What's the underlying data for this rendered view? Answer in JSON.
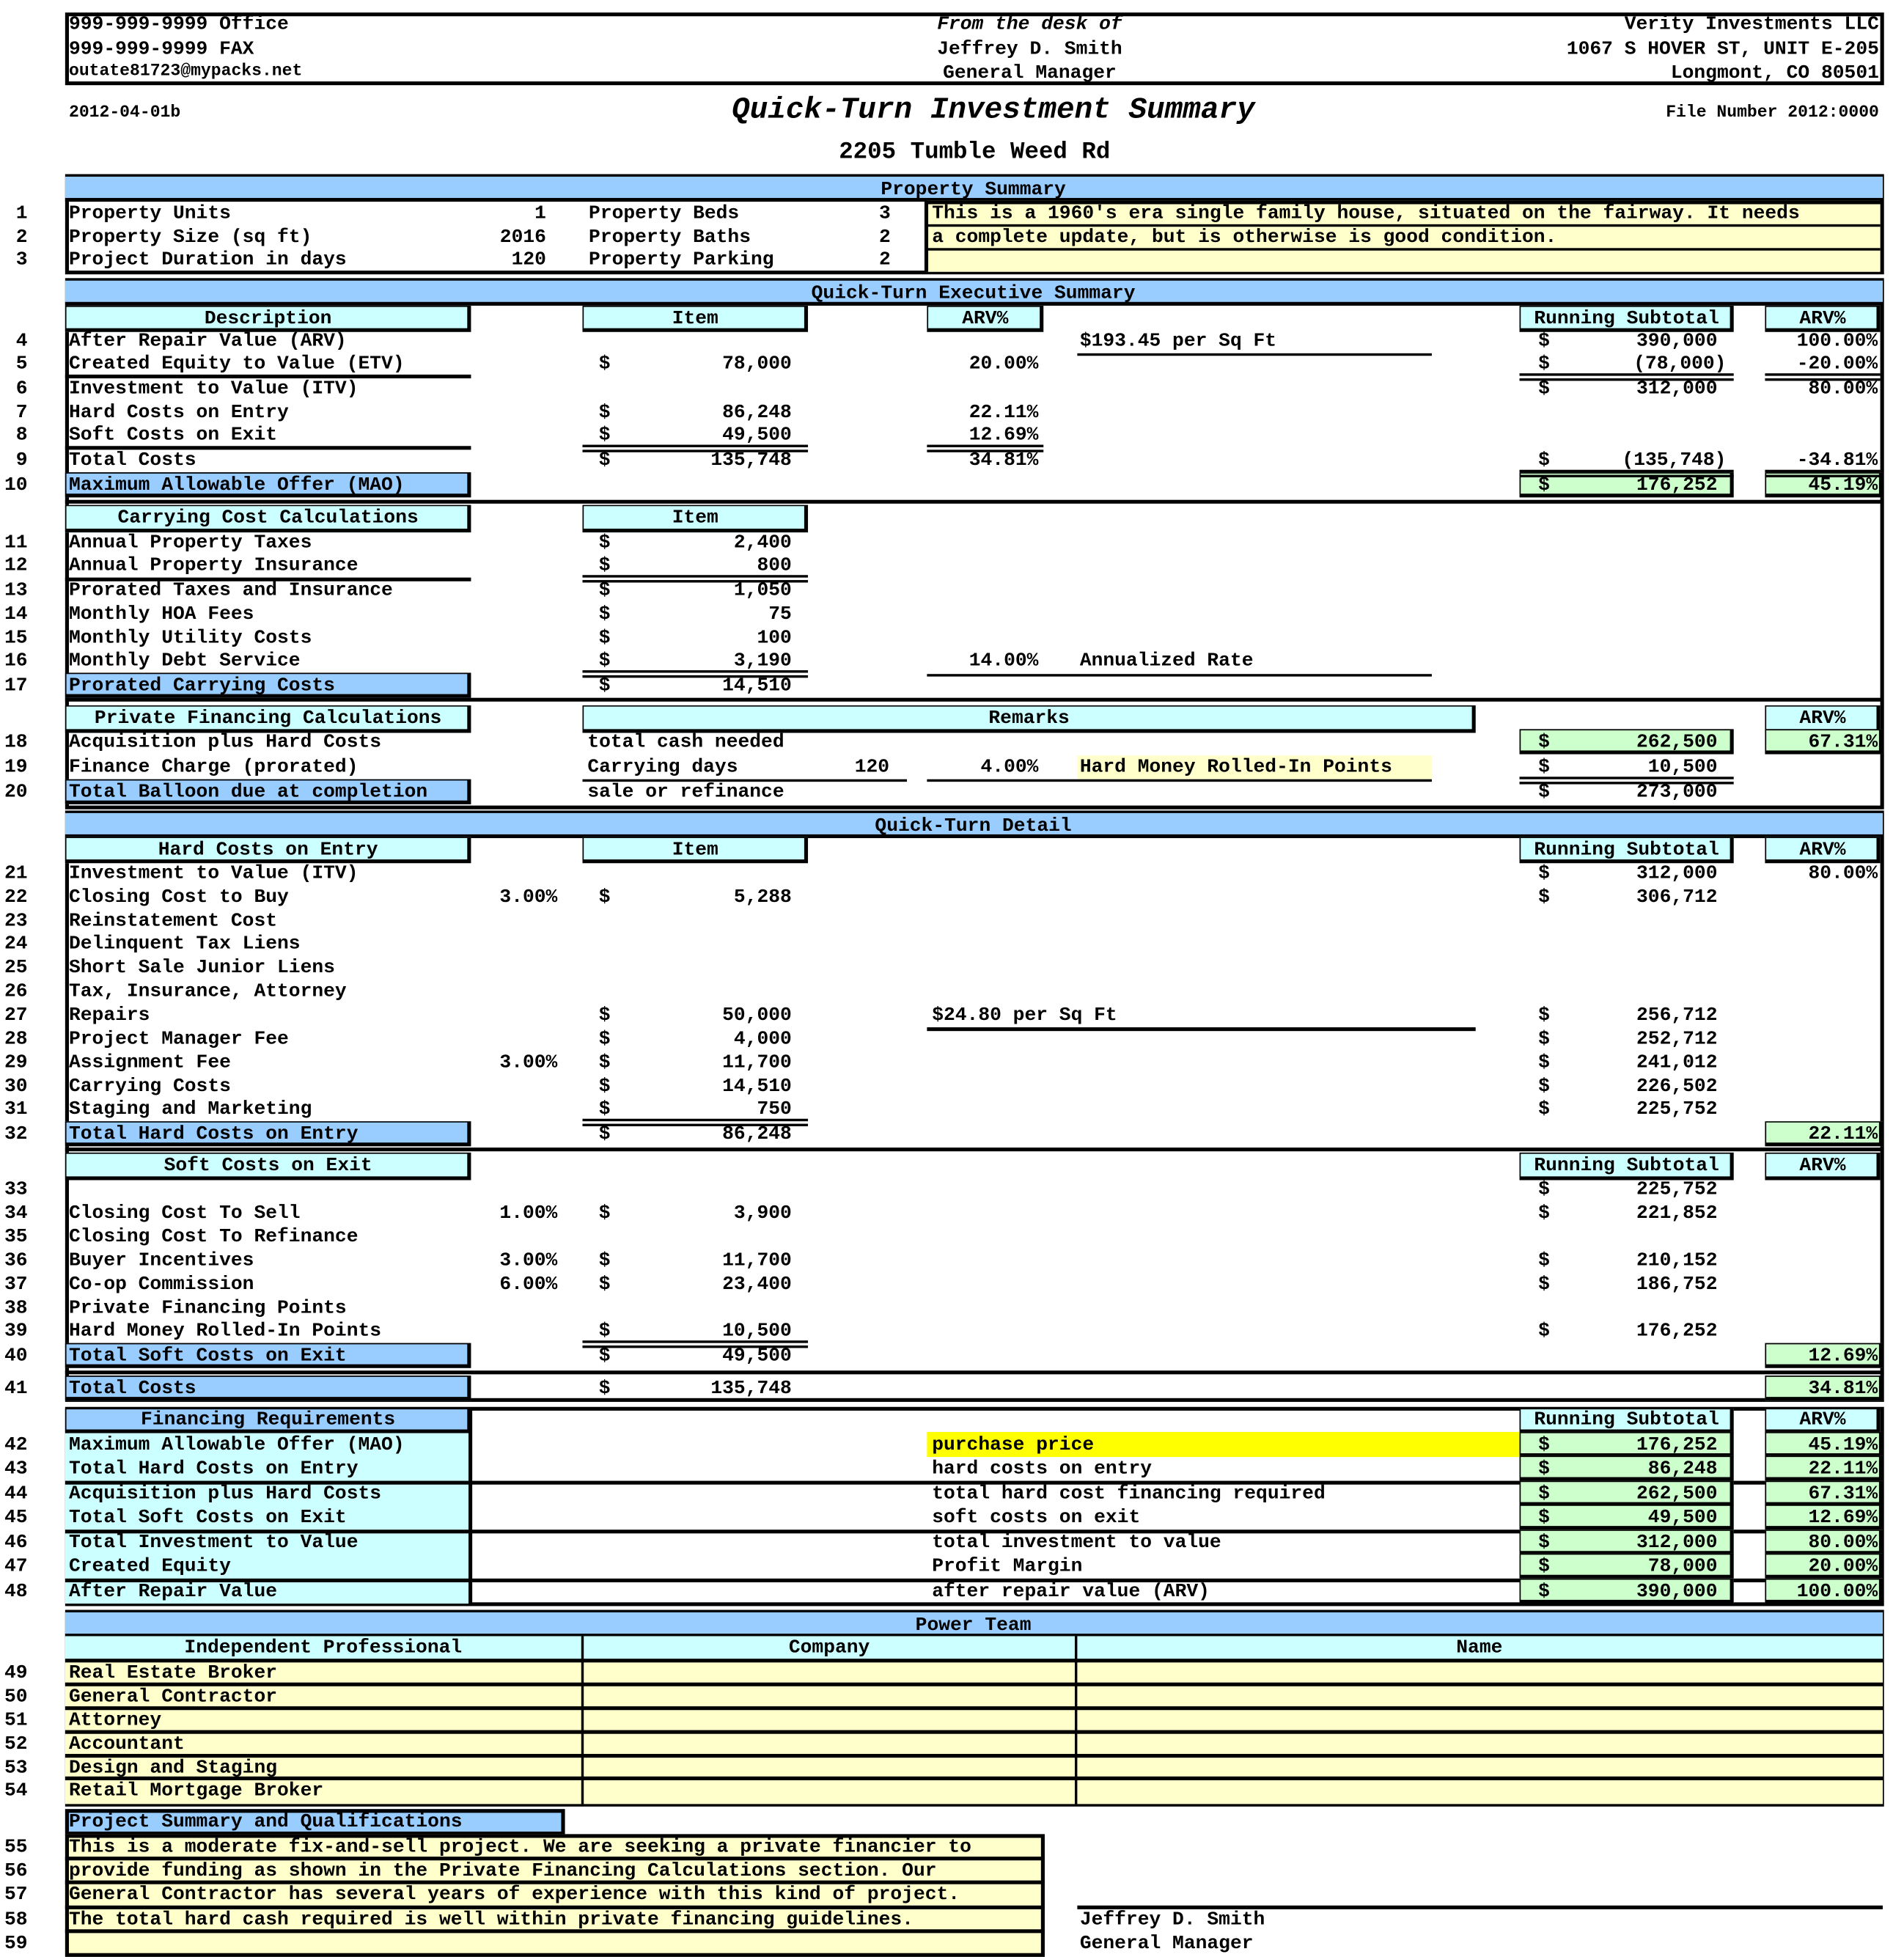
{
  "header": {
    "office": "999-999-9999 Office",
    "fax": "999-999-9999 FAX",
    "email": "outate81723@mypacks.net",
    "from_desk": "From the desk of",
    "name": "Jeffrey D. Smith",
    "role": "General Manager",
    "company": "Verity Investments LLC",
    "street": "1067 S HOVER ST, UNIT E-205",
    "city": "Longmont, CO 80501",
    "version": "2012-04-01b",
    "doc_title": "Quick-Turn Investment Summary",
    "file_number": "File Number 2012:0000",
    "property_address": "2205 Tumble Weed Rd"
  },
  "currency": "$",
  "property_summary": {
    "title": "Property Summary",
    "rows": [
      {
        "n": "1",
        "label": "Property Units",
        "value": "1",
        "label2": "Property Beds",
        "value2": "3"
      },
      {
        "n": "2",
        "label": "Property Size (sq ft)",
        "value": "2016",
        "label2": "Property Baths",
        "value2": "2"
      },
      {
        "n": "3",
        "label": "Project Duration in days",
        "value": "120",
        "label2": "Property Parking",
        "value2": "2"
      }
    ],
    "description": [
      "This is a 1960's era single family house, situated on the fairway. It needs",
      "a complete update, but is otherwise is good condition.",
      ""
    ]
  },
  "exec": {
    "title": "Quick-Turn Executive Summary",
    "col_description": "Description",
    "col_item": "Item",
    "col_arv": "ARV%",
    "col_running": "Running Subtotal",
    "col_arv2": "ARV%"
  },
  "carrying": {
    "title": "Carrying Cost Calculations",
    "col_item": "Item"
  },
  "private_financing": {
    "title": "Private Financing Calculations",
    "col_remarks": "Remarks",
    "col_arv2": "ARV%"
  },
  "detail": {
    "title": "Quick-Turn Detail",
    "hard_title": "Hard Costs on Entry",
    "col_item": "Item",
    "col_running": "Running Subtotal",
    "col_arv2": "ARV%",
    "soft_title": "Soft Costs on Exit",
    "soft_col_running": "Running Subtotal",
    "soft_col_arv2": "ARV%"
  },
  "financing": {
    "title": "Financing Requirements",
    "col_running": "Running Subtotal",
    "col_arv2": "ARV%"
  },
  "rows": [
    {
      "n": "4",
      "label": "After Repair Value (ARV)",
      "note": "$193.45 per Sq Ft",
      "run": "390,000",
      "arv2": "100.00%"
    },
    {
      "n": "5",
      "label": "Created Equity to Value (ETV)",
      "item": "78,000",
      "arv": "20.00%",
      "run": "(78,000)",
      "arv2": "-20.00%"
    },
    {
      "n": "6",
      "label": "Investment to Value (ITV)",
      "run": "312,000",
      "arv2": "80.00%"
    },
    {
      "n": "7",
      "label": "Hard Costs on Entry",
      "item": "86,248",
      "arv": "22.11%"
    },
    {
      "n": "8",
      "label": "Soft Costs on Exit",
      "item": "49,500",
      "arv": "12.69%"
    },
    {
      "n": "9",
      "label": "Total Costs",
      "item": "135,748",
      "arv": "34.81%",
      "run": "(135,748)",
      "arv2": "-34.81%"
    },
    {
      "n": "10",
      "label": "Maximum Allowable Offer (MAO)",
      "run": "176,252",
      "arv2": "45.19%"
    },
    {
      "n": "11",
      "label": "Annual Property Taxes",
      "item": "2,400"
    },
    {
      "n": "12",
      "label": "Annual Property Insurance",
      "item": "800"
    },
    {
      "n": "13",
      "label": "Prorated Taxes and Insurance",
      "item": "1,050"
    },
    {
      "n": "14",
      "label": "Monthly HOA Fees",
      "item": "75"
    },
    {
      "n": "15",
      "label": "Monthly Utility Costs",
      "item": "100"
    },
    {
      "n": "16",
      "label": "Monthly Debt Service",
      "item": "3,190",
      "arv": "14.00%",
      "note": "Annualized Rate"
    },
    {
      "n": "17",
      "label": "Prorated Carrying Costs",
      "item": "14,510"
    },
    {
      "n": "18",
      "label": "Acquisition plus Hard Costs",
      "remark": "total cash needed",
      "run": "262,500",
      "arv2": "67.31%"
    },
    {
      "n": "19",
      "label": "Finance Charge (prorated)",
      "remark": "Carrying days",
      "remark_val": "120",
      "arv": "4.00%",
      "note": "Hard Money Rolled-In Points",
      "run": "10,500"
    },
    {
      "n": "20",
      "label": "Total Balloon due at completion",
      "remark": "sale or refinance",
      "run": "273,000"
    },
    {
      "n": "21",
      "label": "Investment to Value (ITV)",
      "run": "312,000",
      "arv2": "80.00%"
    },
    {
      "n": "22",
      "label": "Closing Cost to Buy",
      "pct": "3.00%",
      "item": "5,288",
      "run": "306,712"
    },
    {
      "n": "23",
      "label": "Reinstatement Cost"
    },
    {
      "n": "24",
      "label": "Delinquent Tax Liens"
    },
    {
      "n": "25",
      "label": "Short Sale Junior Liens"
    },
    {
      "n": "26",
      "label": "Tax, Insurance, Attorney"
    },
    {
      "n": "27",
      "label": "Repairs",
      "item": "50,000",
      "note": "$24.80 per Sq Ft",
      "run": "256,712"
    },
    {
      "n": "28",
      "label": "Project Manager Fee",
      "item": "4,000",
      "run": "252,712"
    },
    {
      "n": "29",
      "label": "Assignment Fee",
      "pct": "3.00%",
      "item": "11,700",
      "run": "241,012"
    },
    {
      "n": "30",
      "label": "Carrying Costs",
      "item": "14,510",
      "run": "226,502"
    },
    {
      "n": "31",
      "label": "Staging and Marketing",
      "item": "750",
      "run": "225,752"
    },
    {
      "n": "32",
      "label": "Total Hard Costs on Entry",
      "item": "86,248",
      "arv2": "22.11%"
    },
    {
      "n": "33",
      "label": "",
      "run": "225,752"
    },
    {
      "n": "34",
      "label": "Closing Cost To Sell",
      "pct": "1.00%",
      "item": "3,900",
      "run": "221,852"
    },
    {
      "n": "35",
      "label": "Closing Cost To Refinance"
    },
    {
      "n": "36",
      "label": "Buyer Incentives",
      "pct": "3.00%",
      "item": "11,700",
      "run": "210,152"
    },
    {
      "n": "37",
      "label": "Co-op Commission",
      "pct": "6.00%",
      "item": "23,400",
      "run": "186,752"
    },
    {
      "n": "38",
      "label": "Private Financing Points"
    },
    {
      "n": "39",
      "label": "Hard Money Rolled-In Points",
      "item": "10,500",
      "run": "176,252"
    },
    {
      "n": "40",
      "label": "Total Soft Costs on Exit",
      "item": "49,500",
      "arv2": "12.69%"
    },
    {
      "n": "41",
      "label": "Total Costs",
      "item": "135,748",
      "arv2": "34.81%"
    },
    {
      "n": "42",
      "label": "Maximum Allowable Offer (MAO)",
      "note": "purchase price",
      "run": "176,252",
      "arv2": "45.19%"
    },
    {
      "n": "43",
      "label": "Total Hard Costs on Entry",
      "note": "hard costs on entry",
      "run": "86,248",
      "arv2": "22.11%"
    },
    {
      "n": "44",
      "label": "Acquisition plus Hard Costs",
      "note": "total hard cost financing required",
      "run": "262,500",
      "arv2": "67.31%"
    },
    {
      "n": "45",
      "label": "Total Soft Costs on Exit",
      "note": "soft costs on exit",
      "run": "49,500",
      "arv2": "12.69%"
    },
    {
      "n": "46",
      "label": "Total Investment to Value",
      "note": "total investment to value",
      "run": "312,000",
      "arv2": "80.00%"
    },
    {
      "n": "47",
      "label": "Created Equity",
      "note": "Profit Margin",
      "run": "78,000",
      "arv2": "20.00%"
    },
    {
      "n": "48",
      "label": "After Repair Value",
      "note": "after repair value (ARV)",
      "run": "390,000",
      "arv2": "100.00%"
    }
  ],
  "power_team": {
    "title": "Power Team",
    "col_professional": "Independent Professional",
    "col_company": "Company",
    "col_name": "Name",
    "rows": [
      {
        "n": "49",
        "professional": "Real Estate Broker",
        "company": "",
        "name": ""
      },
      {
        "n": "50",
        "professional": "General Contractor",
        "company": "",
        "name": ""
      },
      {
        "n": "51",
        "professional": "Attorney",
        "company": "",
        "name": ""
      },
      {
        "n": "52",
        "professional": "Accountant",
        "company": "",
        "name": ""
      },
      {
        "n": "53",
        "professional": "Design and Staging",
        "company": "",
        "name": ""
      },
      {
        "n": "54",
        "professional": "Retail Mortgage Broker",
        "company": "",
        "name": ""
      }
    ]
  },
  "project_summary": {
    "title": "Project Summary and Qualifications",
    "lines": [
      {
        "n": "55",
        "text": "This is a moderate fix-and-sell project. We are seeking a private financier to"
      },
      {
        "n": "56",
        "text": "provide funding as shown in the Private Financing Calculations section. Our"
      },
      {
        "n": "57",
        "text": "General Contractor has several years of experience with this kind of project."
      },
      {
        "n": "58",
        "text": "The total hard cash required is well within private financing guidelines."
      },
      {
        "n": "59",
        "text": ""
      }
    ]
  },
  "signature": {
    "name": "Jeffrey D. Smith",
    "role": "General Manager"
  },
  "colors": {
    "section_blue": "#99CCFF",
    "subheader_cyan": "#CCFFFF",
    "total_green": "#CCFFCC",
    "note_cream": "#FFFFCC",
    "highlight_yellow": "#FFFF00"
  }
}
